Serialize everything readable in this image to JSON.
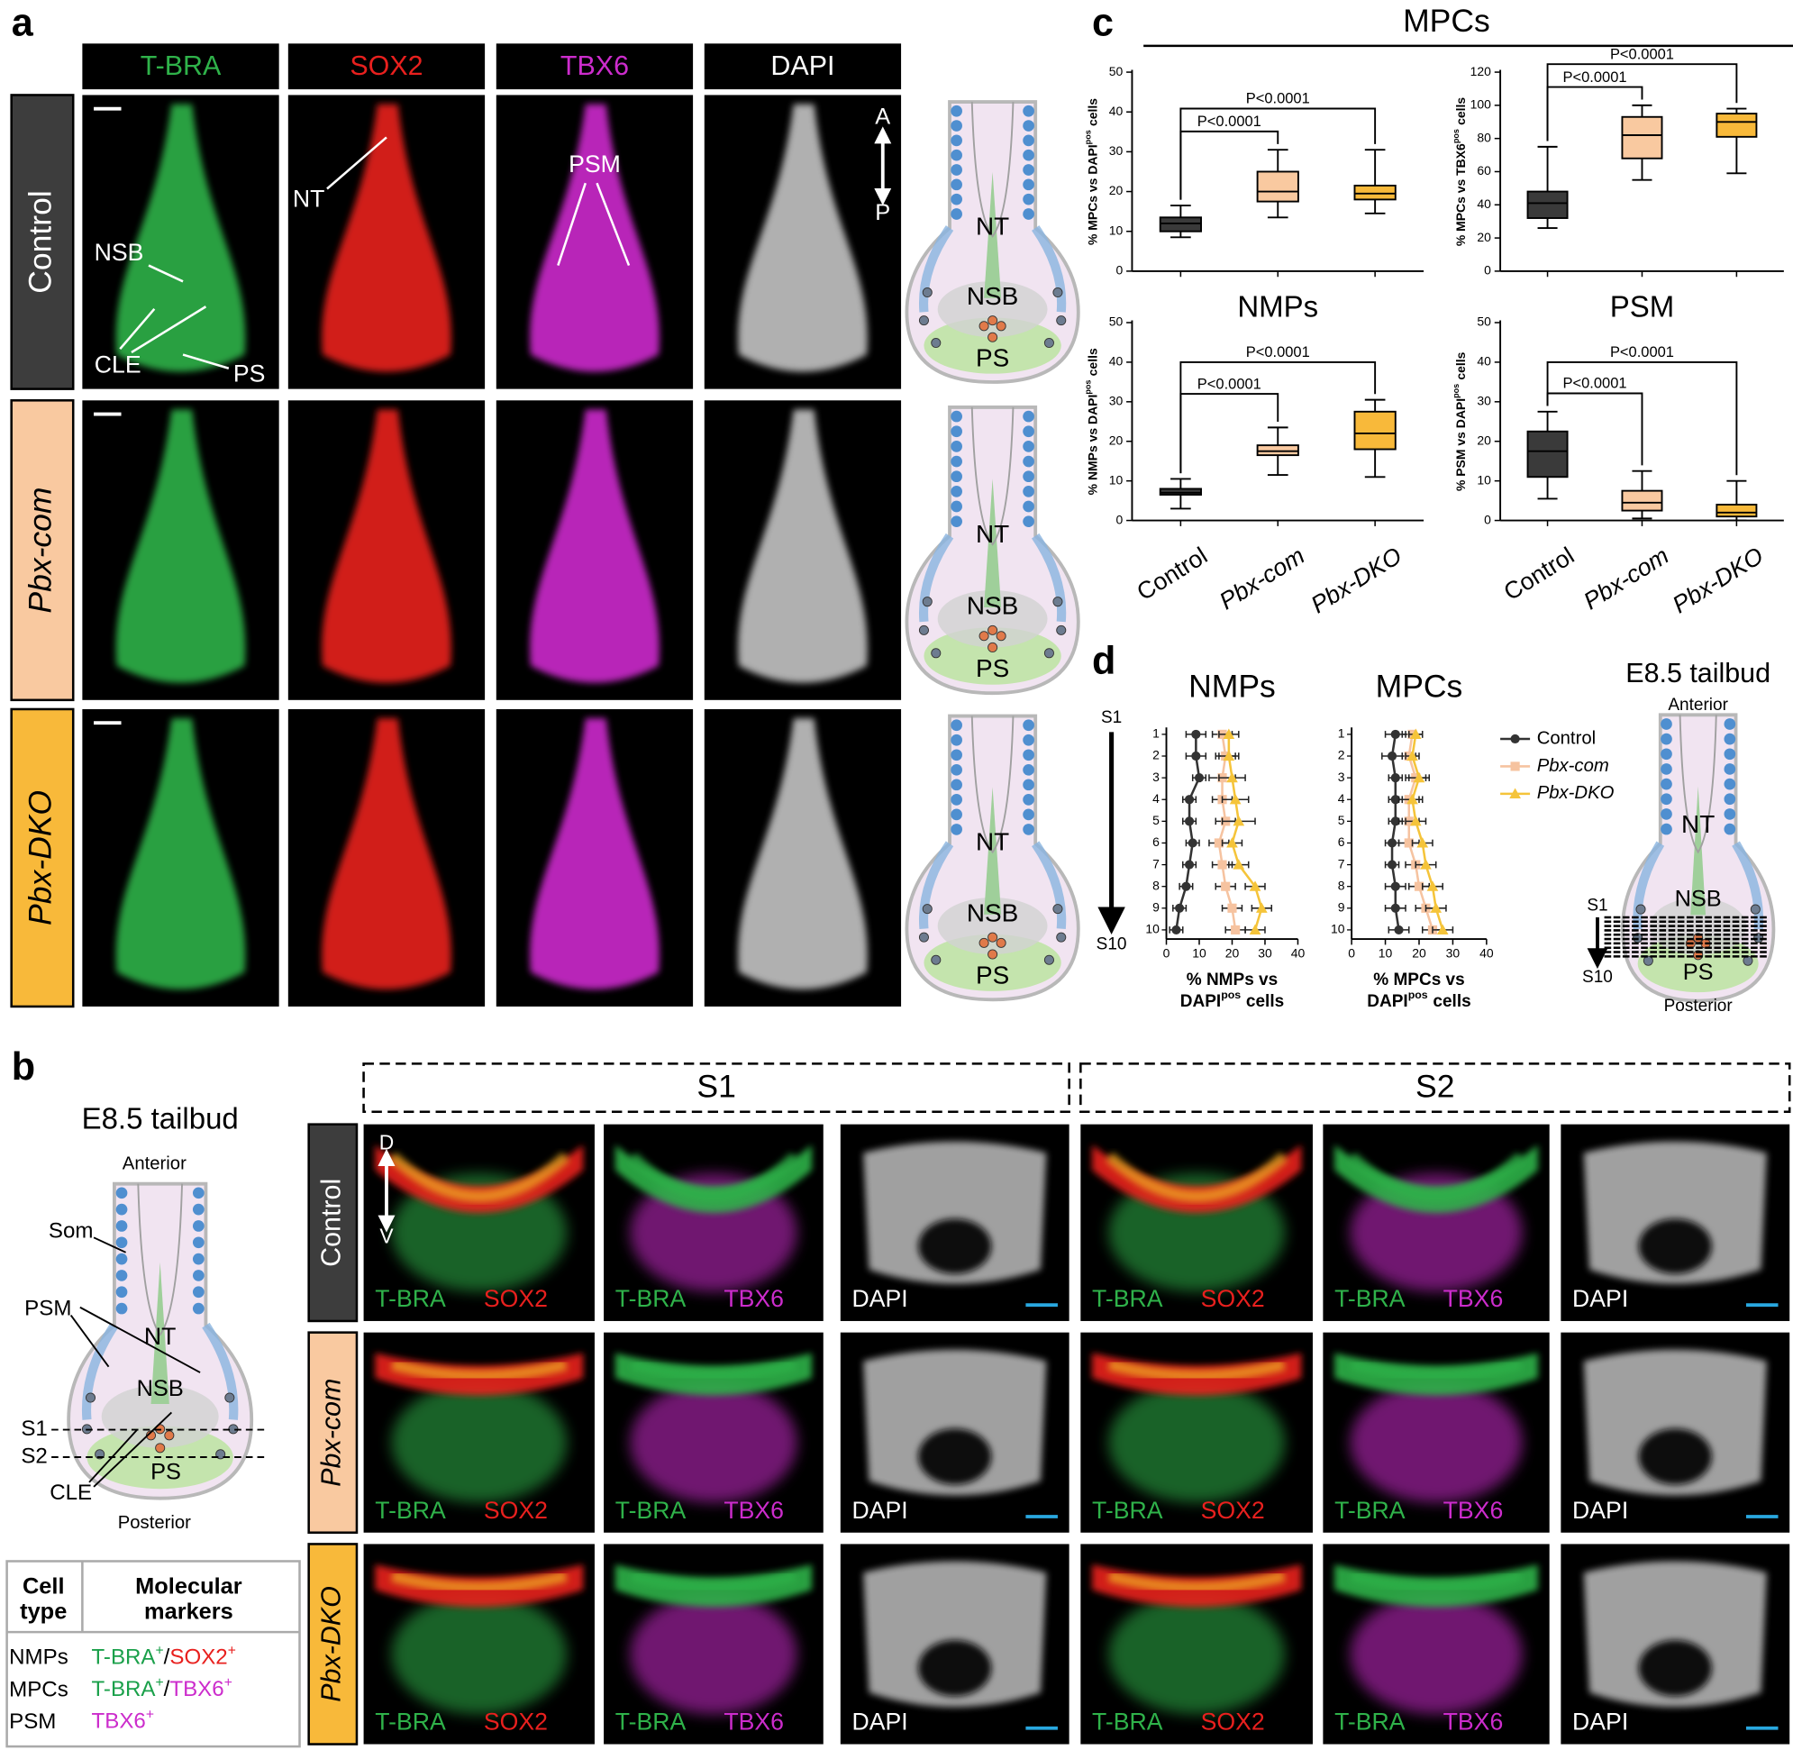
{
  "panel_a": {
    "label": "a",
    "channels": [
      "T-BRA",
      "SOX2",
      "TBX6",
      "DAPI"
    ],
    "channel_colors": [
      "#2fb24a",
      "#e8201e",
      "#cc2ccc",
      "#ffffff"
    ],
    "conditions": [
      "Control",
      "Pbx-com",
      "Pbx-DKO"
    ],
    "condition_colors": [
      "#3d3d3d",
      "#f9c9a0",
      "#f8b93a"
    ],
    "annotations": {
      "nt": "NT",
      "psm": "PSM",
      "nsb": "NSB",
      "cle": "CLE",
      "ps": "PS",
      "anterior": "A",
      "posterior": "P"
    },
    "schematic_labels": [
      "NT",
      "NSB",
      "PS"
    ]
  },
  "panel_b": {
    "label": "b",
    "schematic": {
      "title": "E8.5 tailbud",
      "anterior": "Anterior",
      "posterior": "Posterior",
      "som": "Som",
      "psm": "PSM",
      "nt": "NT",
      "nsb": "NSB",
      "s1": "S1",
      "s2": "S2",
      "ps": "PS",
      "cle": "CLE"
    },
    "sections": [
      "S1",
      "S2"
    ],
    "conditions": [
      "Control",
      "Pbx-com",
      "Pbx-DKO"
    ],
    "orientation": [
      "D",
      "V"
    ],
    "image_labels": [
      [
        "T-BRA",
        "SOX2"
      ],
      [
        "T-BRA",
        "TBX6"
      ],
      [
        "DAPI"
      ]
    ],
    "table": {
      "header": [
        [
          "Cell",
          "type"
        ],
        [
          "Molecular",
          "markers"
        ]
      ],
      "rows": [
        {
          "cell": "NMPs",
          "markers": [
            {
              "text": "T-BRA",
              "sup": "+",
              "color": "#1aa04a"
            },
            {
              "text": "/"
            },
            {
              "text": "SOX2",
              "sup": "+",
              "color": "#e8201e"
            }
          ]
        },
        {
          "cell": "MPCs",
          "markers": [
            {
              "text": "T-BRA",
              "sup": "+",
              "color": "#1aa04a"
            },
            {
              "text": "/"
            },
            {
              "text": "TBX6",
              "sup": "+",
              "color": "#cc2ccc"
            }
          ]
        },
        {
          "cell": "PSM",
          "markers": [
            {
              "text": "TBX6",
              "sup": "+",
              "color": "#cc2ccc"
            }
          ]
        }
      ]
    }
  },
  "panel_c": {
    "label": "c",
    "title": "MPCs"
  },
  "panel_d": {
    "label": "d",
    "axis_start": "S1",
    "axis_end": "S10",
    "schematic": {
      "title": "E8.5 tailbud",
      "anterior": "Anterior",
      "posterior": "Posterior",
      "nt": "NT",
      "nsb": "NSB",
      "ps": "PS",
      "s1": "S1",
      "s10": "S10"
    }
  },
  "chart_data": [
    {
      "type": "box",
      "ylabel": [
        "% MPCs vs DAPI",
        "pos",
        "cells"
      ],
      "categories": [
        null,
        null,
        null
      ],
      "ylim": [
        0,
        50
      ],
      "yticks": [
        0,
        10,
        20,
        30,
        40,
        50
      ],
      "colors": [
        "#3a3a3a",
        "#f9c9a0",
        "#f8b93a"
      ],
      "boxes": [
        {
          "min": 8.5,
          "q1": 10,
          "median": 12,
          "q3": 13.5,
          "max": 16.5
        },
        {
          "min": 13.5,
          "q1": 17.5,
          "median": 20,
          "q3": 25,
          "max": 30.5
        },
        {
          "min": 14.5,
          "q1": 18,
          "median": 19.5,
          "q3": 21.5,
          "max": 30.5
        }
      ],
      "annotations": [
        "P<0.0001",
        "P<0.0001"
      ]
    },
    {
      "type": "box",
      "ylabel": [
        "% MPCs vs TBX6",
        "pos",
        "cells"
      ],
      "categories": [
        null,
        null,
        null
      ],
      "ylim": [
        0,
        120
      ],
      "yticks": [
        0,
        20,
        40,
        60,
        80,
        100,
        120
      ],
      "colors": [
        "#3a3a3a",
        "#f9c9a0",
        "#f8b93a"
      ],
      "boxes": [
        {
          "min": 26,
          "q1": 32,
          "median": 41,
          "q3": 48,
          "max": 75
        },
        {
          "min": 55,
          "q1": 68,
          "median": 82,
          "q3": 93,
          "max": 100
        },
        {
          "min": 59,
          "q1": 81,
          "median": 90,
          "q3": 95,
          "max": 98
        }
      ],
      "annotations": [
        "P<0.0001",
        "P<0.0001"
      ]
    },
    {
      "type": "box",
      "title": "NMPs",
      "ylabel": [
        "% NMPs vs DAPI",
        "pos",
        "cells"
      ],
      "categories": [
        "Control",
        "Pbx-com",
        "Pbx-DKO"
      ],
      "ylim": [
        0,
        50
      ],
      "yticks": [
        0,
        10,
        20,
        30,
        40,
        50
      ],
      "colors": [
        "#3a3a3a",
        "#f9c9a0",
        "#f8b93a"
      ],
      "boxes": [
        {
          "min": 3,
          "q1": 6.5,
          "median": 7,
          "q3": 8,
          "max": 10.5
        },
        {
          "min": 11.5,
          "q1": 16.5,
          "median": 17.5,
          "q3": 19,
          "max": 23.5
        },
        {
          "min": 11,
          "q1": 18,
          "median": 22,
          "q3": 27.5,
          "max": 30.5
        }
      ],
      "annotations": [
        "P<0.0001",
        "P<0.0001"
      ]
    },
    {
      "type": "box",
      "title": "PSM",
      "ylabel": [
        "% PSM vs DAPI",
        "pos",
        "cells"
      ],
      "categories": [
        "Control",
        "Pbx-com",
        "Pbx-DKO"
      ],
      "ylim": [
        0,
        50
      ],
      "yticks": [
        0,
        10,
        20,
        30,
        40,
        50
      ],
      "colors": [
        "#3a3a3a",
        "#f9c9a0",
        "#f8b93a"
      ],
      "boxes": [
        {
          "min": 5.5,
          "q1": 11,
          "median": 17.5,
          "q3": 22.5,
          "max": 27.5
        },
        {
          "min": 0.5,
          "q1": 2.5,
          "median": 4.5,
          "q3": 7.5,
          "max": 12.5
        },
        {
          "min": 0,
          "q1": 1,
          "median": 2,
          "q3": 4,
          "max": 10
        }
      ],
      "annotations": [
        "P<0.0001",
        "P<0.0001"
      ]
    },
    {
      "type": "line",
      "title": "NMPs",
      "categories": [
        1,
        2,
        3,
        4,
        5,
        6,
        7,
        8,
        9,
        10
      ],
      "xlim": [
        0,
        40
      ],
      "xticks": [
        0,
        10,
        20,
        30,
        40
      ],
      "xlabel": {
        "line1": "% NMPs vs",
        "line2": [
          "DAPI",
          "pos",
          "cells"
        ]
      },
      "series": [
        {
          "name": "Control",
          "color": "#333333",
          "values": [
            9,
            9,
            10,
            7,
            7,
            8,
            7,
            6,
            4,
            3
          ],
          "errors": [
            3,
            3,
            2,
            2,
            2,
            2,
            2,
            2,
            2,
            2
          ]
        },
        {
          "name": "Pbx-com",
          "color": "#f6c3a0",
          "values": [
            17,
            18,
            17,
            17,
            18,
            16,
            17,
            18,
            20,
            21
          ],
          "errors": [
            3,
            3,
            4,
            3,
            3,
            3,
            3,
            3,
            3,
            3
          ]
        },
        {
          "name": "Pbx-DKO",
          "color": "#f5c43a",
          "values": [
            19,
            19,
            20,
            21,
            22,
            20,
            22,
            27,
            29,
            27
          ],
          "errors": [
            3,
            3,
            4,
            4,
            5,
            3,
            3,
            3,
            3,
            3
          ]
        }
      ],
      "legend": false
    },
    {
      "type": "line",
      "title": "MPCs",
      "categories": [
        1,
        2,
        3,
        4,
        5,
        6,
        7,
        8,
        9,
        10
      ],
      "xlim": [
        0,
        40
      ],
      "xticks": [
        0,
        10,
        20,
        30,
        40
      ],
      "xlabel": {
        "line1": "% MPCs vs",
        "line2": [
          "DAPI",
          "pos",
          "cells"
        ]
      },
      "series": [
        {
          "name": "Control",
          "color": "#333333",
          "values": [
            13,
            12,
            13,
            13,
            13,
            12,
            12,
            13,
            13,
            14
          ],
          "errors": [
            3,
            3,
            2,
            2,
            2,
            2,
            2,
            3,
            3,
            3
          ]
        },
        {
          "name": "Pbx-com",
          "color": "#f6c3a0",
          "values": [
            18,
            17,
            19,
            17,
            17,
            17,
            19,
            20,
            22,
            24
          ],
          "errors": [
            3,
            2,
            3,
            3,
            3,
            3,
            3,
            3,
            3,
            3
          ]
        },
        {
          "name": "Pbx-DKO",
          "color": "#f5c43a",
          "values": [
            19,
            18,
            20,
            18,
            19,
            21,
            22,
            24,
            25,
            27
          ],
          "errors": [
            2,
            2,
            3,
            3,
            3,
            3,
            3,
            3,
            3,
            3
          ]
        }
      ],
      "legend": true
    }
  ]
}
